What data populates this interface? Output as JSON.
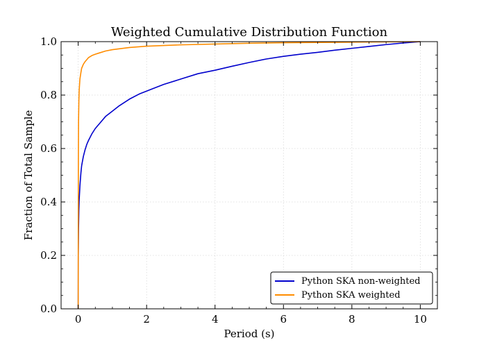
{
  "chart_data": {
    "type": "line",
    "title": "Weighted Cumulative Distribution Function",
    "xlabel": "Period (s)",
    "ylabel": "Fraction of Total Sample",
    "xlim": [
      -0.5,
      10.5
    ],
    "ylim": [
      0.0,
      1.0
    ],
    "xticks": [
      0,
      2,
      4,
      6,
      8,
      10
    ],
    "xtick_labels": [
      "0",
      "2",
      "4",
      "6",
      "8",
      "10"
    ],
    "yticks": [
      0.0,
      0.2,
      0.4,
      0.6,
      0.8,
      1.0
    ],
    "ytick_labels": [
      "0.0",
      "0.2",
      "0.4",
      "0.6",
      "0.8",
      "1.0"
    ],
    "grid": true,
    "legend_position": "lower-right",
    "series": [
      {
        "name": "Python SKA non-weighted",
        "color": "#0000cc",
        "x": [
          0.0,
          0.003,
          0.01,
          0.02,
          0.03,
          0.05,
          0.08,
          0.1,
          0.15,
          0.2,
          0.25,
          0.3,
          0.4,
          0.5,
          0.6,
          0.8,
          1.0,
          1.2,
          1.5,
          1.8,
          2.0,
          2.5,
          3.0,
          3.5,
          4.0,
          4.5,
          5.0,
          5.5,
          6.0,
          6.5,
          7.0,
          7.5,
          8.0,
          8.5,
          9.0,
          9.5,
          10.0
        ],
        "y": [
          0.0,
          0.2,
          0.3,
          0.37,
          0.41,
          0.46,
          0.51,
          0.535,
          0.57,
          0.595,
          0.615,
          0.63,
          0.655,
          0.675,
          0.69,
          0.72,
          0.74,
          0.76,
          0.785,
          0.805,
          0.815,
          0.84,
          0.86,
          0.88,
          0.893,
          0.908,
          0.922,
          0.935,
          0.945,
          0.953,
          0.96,
          0.968,
          0.975,
          0.982,
          0.989,
          0.995,
          1.0
        ]
      },
      {
        "name": "Python SKA weighted",
        "color": "#ff8c00",
        "x": [
          0.0,
          0.002,
          0.005,
          0.01,
          0.02,
          0.03,
          0.05,
          0.08,
          0.1,
          0.15,
          0.2,
          0.3,
          0.4,
          0.5,
          0.6,
          0.8,
          1.0,
          1.5,
          2.0,
          3.0,
          4.0,
          5.0,
          6.0,
          7.0,
          8.0,
          9.0,
          10.0
        ],
        "y": [
          0.0,
          0.3,
          0.55,
          0.7,
          0.78,
          0.82,
          0.86,
          0.885,
          0.9,
          0.915,
          0.925,
          0.94,
          0.948,
          0.953,
          0.957,
          0.965,
          0.97,
          0.978,
          0.983,
          0.988,
          0.991,
          0.994,
          0.996,
          0.997,
          0.998,
          0.999,
          1.0
        ]
      }
    ]
  }
}
